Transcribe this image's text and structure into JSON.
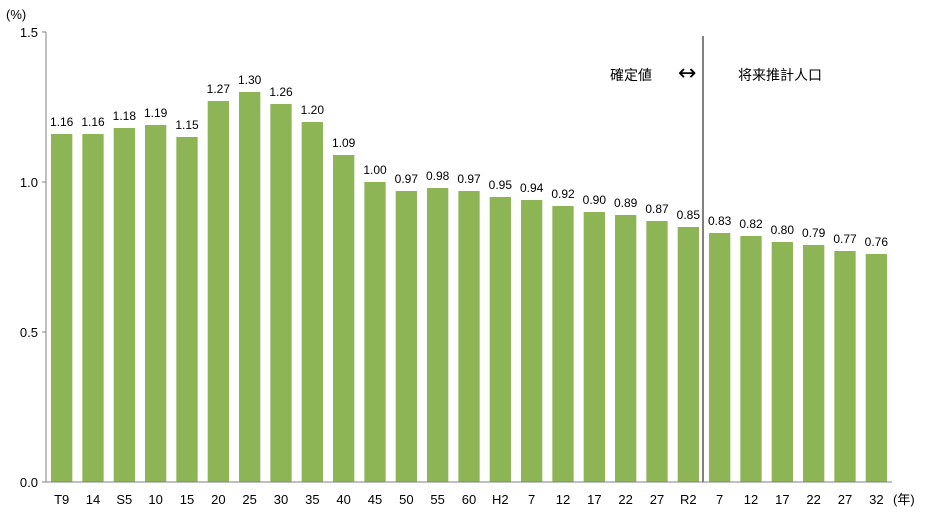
{
  "chart_data": {
    "type": "bar",
    "title": "",
    "xlabel": "",
    "ylabel": "",
    "y_unit_label": "(%)",
    "x_unit_label": "(年)",
    "ylim": [
      0,
      1.5
    ],
    "yticks": [
      "0.0",
      "0.5",
      "1.0",
      "1.5"
    ],
    "grid": false,
    "bar_color": "#8db555",
    "categories": [
      "T9",
      "14",
      "S5",
      "10",
      "15",
      "20",
      "25",
      "30",
      "35",
      "40",
      "45",
      "50",
      "55",
      "60",
      "H2",
      "7",
      "12",
      "17",
      "22",
      "27",
      "R2",
      "7",
      "12",
      "17",
      "22",
      "27",
      "32"
    ],
    "values": [
      1.16,
      1.16,
      1.18,
      1.19,
      1.15,
      1.27,
      1.3,
      1.26,
      1.2,
      1.09,
      1.0,
      0.97,
      0.98,
      0.97,
      0.95,
      0.94,
      0.92,
      0.9,
      0.89,
      0.87,
      0.85,
      0.83,
      0.82,
      0.8,
      0.79,
      0.77,
      0.76
    ],
    "value_labels": [
      "1.16",
      "1.16",
      "1.18",
      "1.19",
      "1.15",
      "1.27",
      "1.30",
      "1.26",
      "1.20",
      "1.09",
      "1.00",
      "0.97",
      "0.98",
      "0.97",
      "0.95",
      "0.94",
      "0.92",
      "0.90",
      "0.89",
      "0.87",
      "0.85",
      "0.83",
      "0.82",
      "0.80",
      "0.79",
      "0.77",
      "0.76"
    ],
    "annotations": {
      "left_label": "確定値",
      "right_label": "将来推計人口",
      "arrow": "↔"
    }
  }
}
